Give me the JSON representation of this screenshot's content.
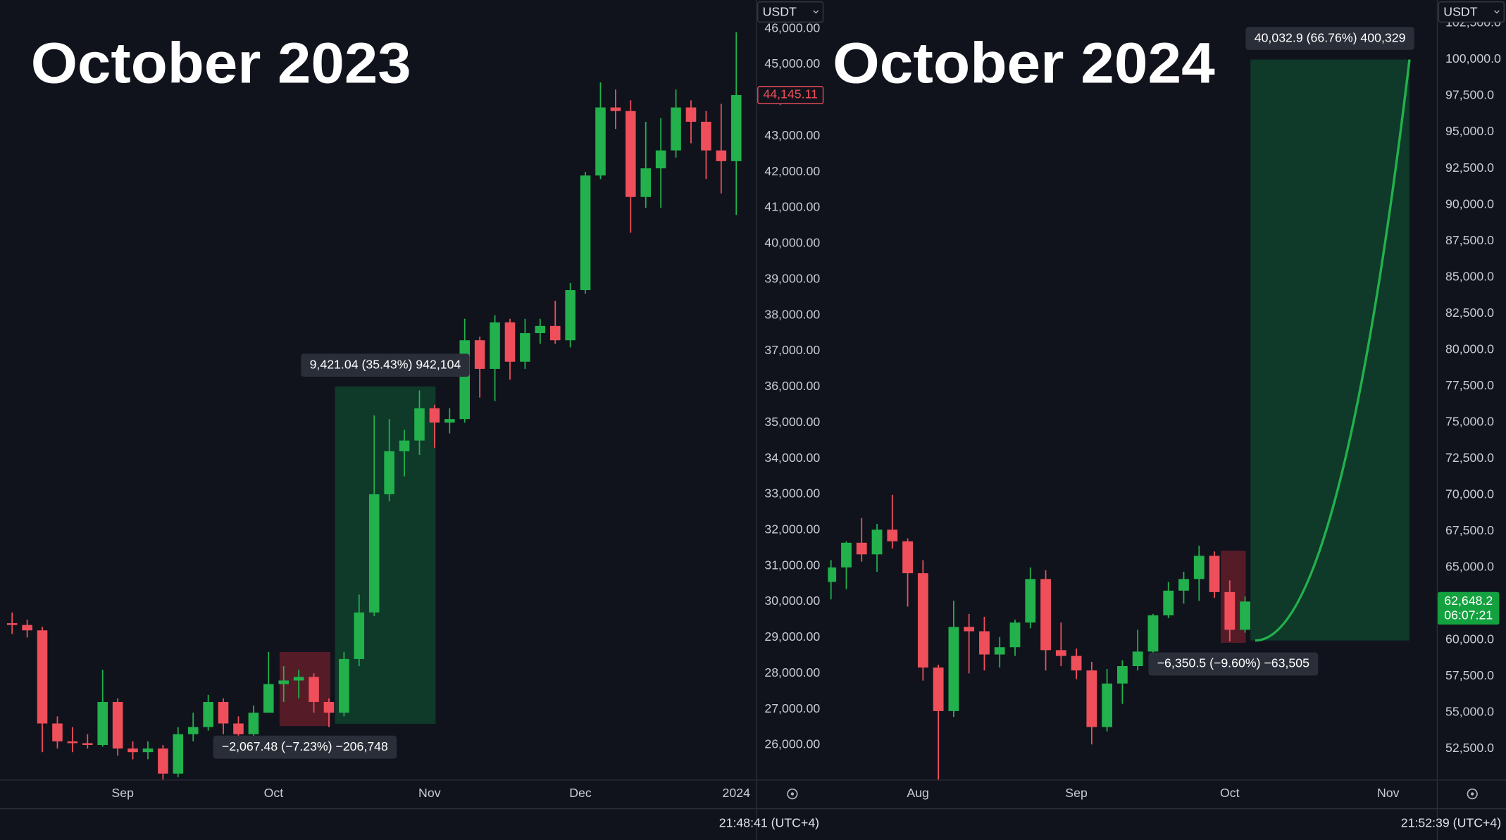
{
  "chart_data": [
    {
      "type": "candlestick",
      "title": "October 2023",
      "currency": "USDT",
      "time": "21:48:41 (UTC+4)",
      "up_color": "#22b14c",
      "down_color": "#ef4f5a",
      "xlim": [
        -0.8,
        49.3
      ],
      "ylim": [
        25035,
        46800
      ],
      "xticks": [
        {
          "value": 7.33,
          "label": "Sep"
        },
        {
          "value": 17.33,
          "label": "Oct"
        },
        {
          "value": 27.67,
          "label": "Nov"
        },
        {
          "value": 37.67,
          "label": "Dec"
        },
        {
          "value": 48,
          "label": "2024"
        }
      ],
      "yticks": [
        {
          "value": 26000,
          "label": "26,000.00"
        },
        {
          "value": 27000,
          "label": "27,000.00"
        },
        {
          "value": 28000,
          "label": "28,000.00"
        },
        {
          "value": 29000,
          "label": "29,000.00"
        },
        {
          "value": 30000,
          "label": "30,000.00"
        },
        {
          "value": 31000,
          "label": "31,000.00"
        },
        {
          "value": 32000,
          "label": "32,000.00"
        },
        {
          "value": 33000,
          "label": "33,000.00"
        },
        {
          "value": 34000,
          "label": "34,000.00"
        },
        {
          "value": 35000,
          "label": "35,000.00"
        },
        {
          "value": 36000,
          "label": "36,000.00"
        },
        {
          "value": 37000,
          "label": "37,000.00"
        },
        {
          "value": 38000,
          "label": "38,000.00"
        },
        {
          "value": 39000,
          "label": "39,000.00"
        },
        {
          "value": 40000,
          "label": "40,000.00"
        },
        {
          "value": 41000,
          "label": "41,000.00"
        },
        {
          "value": 42000,
          "label": "42,000.00"
        },
        {
          "value": 43000,
          "label": "43,000.00"
        },
        {
          "value": 44000,
          "label": "44,000.00"
        },
        {
          "value": 45000,
          "label": "45,000.00"
        },
        {
          "value": 46000,
          "label": "46,000.00"
        }
      ],
      "last_price": {
        "value": 44145.11,
        "label": "44,145.11"
      },
      "candles": [
        [
          29400,
          29700,
          29100,
          29350
        ],
        [
          29350,
          29500,
          29000,
          29200
        ],
        [
          29200,
          29300,
          25800,
          26600
        ],
        [
          26600,
          26800,
          25900,
          26100
        ],
        [
          26100,
          26500,
          25800,
          26050
        ],
        [
          26050,
          26300,
          25900,
          26000
        ],
        [
          26000,
          28100,
          25950,
          27200
        ],
        [
          27200,
          27300,
          25700,
          25900
        ],
        [
          25900,
          26100,
          25600,
          25800
        ],
        [
          25800,
          26100,
          25600,
          25900
        ],
        [
          25900,
          26000,
          24900,
          25200
        ],
        [
          25200,
          26500,
          25100,
          26300
        ],
        [
          26300,
          26900,
          26100,
          26500
        ],
        [
          26500,
          27400,
          26400,
          27200
        ],
        [
          27200,
          27300,
          26300,
          26600
        ],
        [
          26600,
          26800,
          26100,
          26300
        ],
        [
          26300,
          27100,
          26200,
          26900
        ],
        [
          26900,
          28600,
          26900,
          27700
        ],
        [
          27700,
          28200,
          27200,
          27800
        ],
        [
          27800,
          28100,
          27300,
          27900
        ],
        [
          27900,
          28000,
          26900,
          27200
        ],
        [
          27200,
          27300,
          26500,
          26900
        ],
        [
          26900,
          28600,
          26800,
          28400
        ],
        [
          28400,
          30200,
          28200,
          29700
        ],
        [
          29700,
          35200,
          29600,
          33000
        ],
        [
          33000,
          35100,
          32800,
          34200
        ],
        [
          34200,
          34800,
          33500,
          34500
        ],
        [
          34500,
          35900,
          34100,
          35400
        ],
        [
          35400,
          35500,
          34300,
          35000
        ],
        [
          35000,
          35400,
          34700,
          35100
        ],
        [
          35100,
          37900,
          35000,
          37300
        ],
        [
          37300,
          37400,
          35700,
          36500
        ],
        [
          36500,
          38000,
          35600,
          37800
        ],
        [
          37800,
          37900,
          36200,
          36700
        ],
        [
          36700,
          37900,
          36500,
          37500
        ],
        [
          37500,
          37900,
          37200,
          37700
        ],
        [
          37700,
          38400,
          37200,
          37300
        ],
        [
          37300,
          38900,
          37100,
          38700
        ],
        [
          38700,
          42000,
          38600,
          41900
        ],
        [
          41900,
          44500,
          41800,
          43800
        ],
        [
          43800,
          44300,
          43200,
          43700
        ],
        [
          43700,
          44000,
          40300,
          41300
        ],
        [
          41300,
          43400,
          41000,
          42100
        ],
        [
          42100,
          43500,
          41000,
          42600
        ],
        [
          42600,
          44300,
          42400,
          43800
        ],
        [
          43800,
          44000,
          42800,
          43400
        ],
        [
          43400,
          43700,
          41800,
          42600
        ],
        [
          42600,
          43900,
          41400,
          42300
        ],
        [
          42300,
          45900,
          40800,
          44145.11
        ]
      ],
      "measures": [
        {
          "label": "−2,067.48 (−7.23%) −206,748",
          "from": 28596,
          "to": 26529,
          "xrange": [
            17.73,
            21.09
          ]
        },
        {
          "label": "9,421.04 (35.43%) 942,104",
          "from": 26591,
          "to": 36012,
          "xrange": [
            21.4,
            28.07
          ]
        }
      ]
    },
    {
      "type": "candlestick",
      "title": "October 2024",
      "currency": "USDT",
      "time": "21:52:39 (UTC+4)",
      "up_color": "#22b14c",
      "down_color": "#ef4f5a",
      "xlim": [
        -0.2,
        39.5
      ],
      "ylim": [
        50384,
        104100
      ],
      "xticks": [
        {
          "value": 5.67,
          "label": "Aug"
        },
        {
          "value": 16,
          "label": "Sep"
        },
        {
          "value": 26,
          "label": "Oct"
        },
        {
          "value": 36.33,
          "label": "Nov"
        }
      ],
      "yticks": [
        {
          "value": 52500,
          "label": "52,500.0"
        },
        {
          "value": 55000,
          "label": "55,000.0"
        },
        {
          "value": 57500,
          "label": "57,500.0"
        },
        {
          "value": 60000,
          "label": "60,000.0"
        },
        {
          "value": 62500,
          "label": "62,500.0"
        },
        {
          "value": 65000,
          "label": "65,000.0"
        },
        {
          "value": 67500,
          "label": "67,500.0"
        },
        {
          "value": 70000,
          "label": "70,000.0"
        },
        {
          "value": 72500,
          "label": "72,500.0"
        },
        {
          "value": 75000,
          "label": "75,000.0"
        },
        {
          "value": 77500,
          "label": "77,500.0"
        },
        {
          "value": 80000,
          "label": "80,000.0"
        },
        {
          "value": 82500,
          "label": "82,500.0"
        },
        {
          "value": 85000,
          "label": "85,000.0"
        },
        {
          "value": 87500,
          "label": "87,500.0"
        },
        {
          "value": 90000,
          "label": "90,000.0"
        },
        {
          "value": 92500,
          "label": "92,500.0"
        },
        {
          "value": 95000,
          "label": "95,000.0"
        },
        {
          "value": 97500,
          "label": "97,500.0"
        },
        {
          "value": 100000,
          "label": "100,000.0"
        },
        {
          "value": 102500,
          "label": "102,500.0"
        }
      ],
      "last_price": {
        "value": 62648.2,
        "label": "62,648.2",
        "countdown": "06:07:21"
      },
      "candles": [
        [
          64000,
          65500,
          62800,
          65000
        ],
        [
          65000,
          66800,
          63500,
          66700
        ],
        [
          66700,
          68400,
          65400,
          65900
        ],
        [
          65900,
          68000,
          64700,
          67600
        ],
        [
          67600,
          70000,
          66300,
          66800
        ],
        [
          66800,
          67000,
          62300,
          64600
        ],
        [
          64600,
          65500,
          57200,
          58100
        ],
        [
          58100,
          58300,
          49000,
          55100
        ],
        [
          55100,
          62700,
          54700,
          60900
        ],
        [
          60900,
          61800,
          57700,
          60600
        ],
        [
          60600,
          61600,
          57900,
          59000
        ],
        [
          59000,
          60200,
          58100,
          59500
        ],
        [
          59500,
          61400,
          58900,
          61200
        ],
        [
          61200,
          65000,
          60800,
          64200
        ],
        [
          64200,
          64800,
          57900,
          59300
        ],
        [
          59300,
          61200,
          58200,
          58900
        ],
        [
          58900,
          59400,
          57300,
          57900
        ],
        [
          57900,
          58500,
          52800,
          54000
        ],
        [
          54000,
          58000,
          53700,
          57000
        ],
        [
          57000,
          58600,
          55600,
          58200
        ],
        [
          58200,
          60700,
          57900,
          59200
        ],
        [
          59200,
          61800,
          57600,
          61700
        ],
        [
          61700,
          64000,
          61500,
          63400
        ],
        [
          63400,
          64700,
          62500,
          64200
        ],
        [
          64200,
          66500,
          62700,
          65800
        ],
        [
          65800,
          66100,
          62900,
          63300
        ],
        [
          63300,
          64100,
          59900,
          60700
        ],
        [
          60700,
          63000,
          60500,
          62648.2
        ]
      ],
      "measures": [
        {
          "label": "−6,350.5 (−9.60%) −63,505",
          "from": 66151,
          "to": 59800,
          "xrange": [
            25.42,
            27.04
          ]
        },
        {
          "label": "40,032.9 (66.76%) 400,329",
          "from": 59964,
          "to": 99997,
          "xrange": [
            27.35,
            37.72
          ],
          "projection_curve": true
        }
      ]
    }
  ]
}
